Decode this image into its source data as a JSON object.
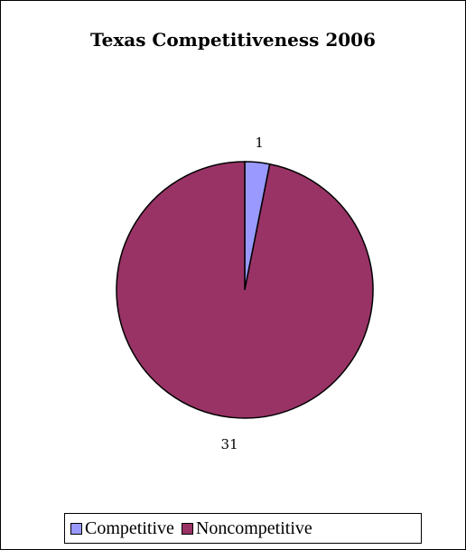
{
  "chart_data": {
    "type": "pie",
    "title": "Texas Competitiveness 2006",
    "categories": [
      "Competitive",
      "Noncompetitive"
    ],
    "values": [
      1,
      31
    ],
    "data_labels": [
      "1",
      "31"
    ],
    "colors": [
      "#9999FF",
      "#993366"
    ],
    "legend": {
      "placement": "bottom",
      "entries": [
        "Competitive",
        "Noncompetitive"
      ]
    },
    "start_angle_deg": 0,
    "direction": "clockwise"
  }
}
